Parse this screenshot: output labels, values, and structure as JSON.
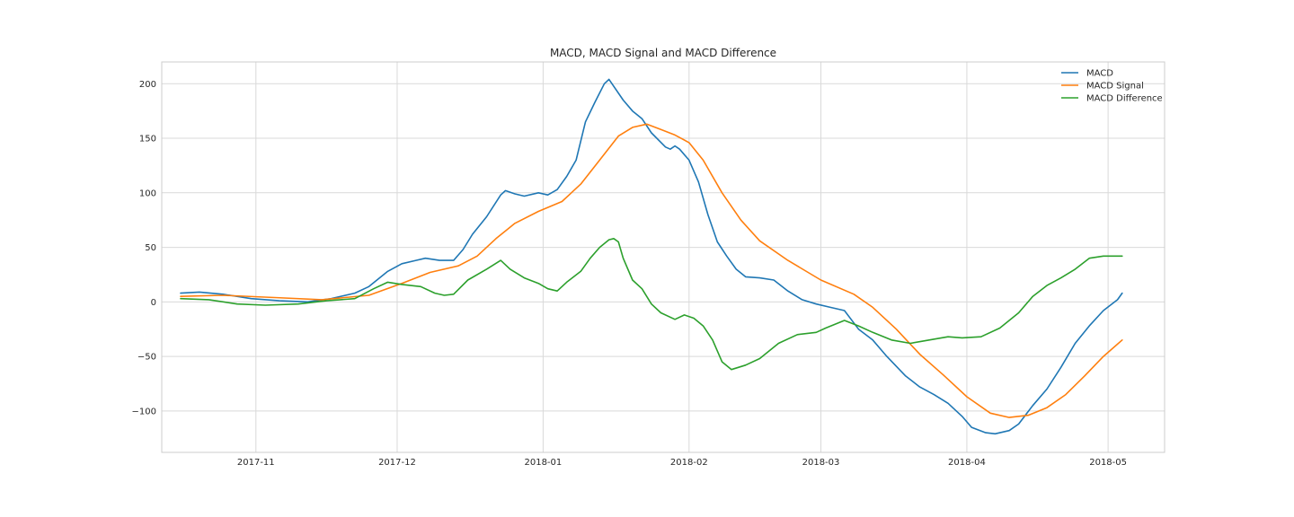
{
  "chart_data": {
    "type": "line",
    "title": "MACD, MACD Signal and MACD Difference",
    "xlabel": "",
    "ylabel": "",
    "grid": true,
    "legend_position": "top-right",
    "xlim": [
      "2017-10-12",
      "2018-05-13"
    ],
    "ylim": [
      -138,
      220
    ],
    "x_ticks": [
      "2017-11-01",
      "2017-12-01",
      "2018-01-01",
      "2018-02-01",
      "2018-03-01",
      "2018-04-01",
      "2018-05-01"
    ],
    "x_tick_labels": [
      "2017-11",
      "2017-12",
      "2018-01",
      "2018-02",
      "2018-03",
      "2018-04",
      "2018-05"
    ],
    "y_ticks": [
      -100,
      -50,
      0,
      50,
      100,
      150,
      200
    ],
    "y_tick_labels": [
      "−100",
      "−50",
      "0",
      "50",
      "100",
      "150",
      "200"
    ],
    "series": [
      {
        "name": "MACD",
        "color": "#1f77b4",
        "points": [
          [
            "2017-10-16",
            8
          ],
          [
            "2017-10-20",
            9
          ],
          [
            "2017-10-25",
            7
          ],
          [
            "2017-10-31",
            3
          ],
          [
            "2017-11-06",
            1
          ],
          [
            "2017-11-12",
            0
          ],
          [
            "2017-11-17",
            3
          ],
          [
            "2017-11-22",
            8
          ],
          [
            "2017-11-25",
            14
          ],
          [
            "2017-11-29",
            28
          ],
          [
            "2017-12-02",
            35
          ],
          [
            "2017-12-05",
            38
          ],
          [
            "2017-12-07",
            40
          ],
          [
            "2017-12-10",
            38
          ],
          [
            "2017-12-13",
            38
          ],
          [
            "2017-12-15",
            48
          ],
          [
            "2017-12-17",
            62
          ],
          [
            "2017-12-20",
            78
          ],
          [
            "2017-12-23",
            98
          ],
          [
            "2017-12-24",
            102
          ],
          [
            "2017-12-26",
            99
          ],
          [
            "2017-12-28",
            97
          ],
          [
            "2017-12-31",
            100
          ],
          [
            "2018-01-02",
            98
          ],
          [
            "2018-01-04",
            103
          ],
          [
            "2018-01-06",
            115
          ],
          [
            "2018-01-08",
            130
          ],
          [
            "2018-01-10",
            165
          ],
          [
            "2018-01-12",
            183
          ],
          [
            "2018-01-14",
            200
          ],
          [
            "2018-01-15",
            204
          ],
          [
            "2018-01-18",
            185
          ],
          [
            "2018-01-20",
            175
          ],
          [
            "2018-01-22",
            168
          ],
          [
            "2018-01-24",
            155
          ],
          [
            "2018-01-27",
            142
          ],
          [
            "2018-01-28",
            140
          ],
          [
            "2018-01-29",
            143
          ],
          [
            "2018-01-30",
            140
          ],
          [
            "2018-02-01",
            130
          ],
          [
            "2018-02-03",
            110
          ],
          [
            "2018-02-05",
            80
          ],
          [
            "2018-02-07",
            55
          ],
          [
            "2018-02-09",
            42
          ],
          [
            "2018-02-11",
            30
          ],
          [
            "2018-02-13",
            23
          ],
          [
            "2018-02-16",
            22
          ],
          [
            "2018-02-19",
            20
          ],
          [
            "2018-02-22",
            10
          ],
          [
            "2018-02-25",
            2
          ],
          [
            "2018-02-28",
            -2
          ],
          [
            "2018-03-03",
            -5
          ],
          [
            "2018-03-06",
            -8
          ],
          [
            "2018-03-09",
            -25
          ],
          [
            "2018-03-12",
            -35
          ],
          [
            "2018-03-15",
            -50
          ],
          [
            "2018-03-19",
            -68
          ],
          [
            "2018-03-22",
            -78
          ],
          [
            "2018-03-25",
            -85
          ],
          [
            "2018-03-28",
            -93
          ],
          [
            "2018-03-31",
            -105
          ],
          [
            "2018-04-02",
            -115
          ],
          [
            "2018-04-05",
            -120
          ],
          [
            "2018-04-07",
            -121
          ],
          [
            "2018-04-10",
            -118
          ],
          [
            "2018-04-12",
            -112
          ],
          [
            "2018-04-15",
            -95
          ],
          [
            "2018-04-18",
            -80
          ],
          [
            "2018-04-21",
            -60
          ],
          [
            "2018-04-24",
            -38
          ],
          [
            "2018-04-27",
            -22
          ],
          [
            "2018-04-30",
            -8
          ],
          [
            "2018-05-03",
            2
          ],
          [
            "2018-05-04",
            8
          ]
        ]
      },
      {
        "name": "MACD Signal",
        "color": "#ff7f0e",
        "points": [
          [
            "2017-10-16",
            5
          ],
          [
            "2017-10-25",
            6
          ],
          [
            "2017-11-05",
            4
          ],
          [
            "2017-11-15",
            2
          ],
          [
            "2017-11-25",
            6
          ],
          [
            "2017-12-02",
            17
          ],
          [
            "2017-12-08",
            27
          ],
          [
            "2017-12-14",
            33
          ],
          [
            "2017-12-18",
            42
          ],
          [
            "2017-12-22",
            58
          ],
          [
            "2017-12-26",
            72
          ],
          [
            "2017-12-31",
            83
          ],
          [
            "2018-01-05",
            92
          ],
          [
            "2018-01-09",
            108
          ],
          [
            "2018-01-13",
            130
          ],
          [
            "2018-01-17",
            152
          ],
          [
            "2018-01-20",
            160
          ],
          [
            "2018-01-23",
            163
          ],
          [
            "2018-01-26",
            158
          ],
          [
            "2018-01-29",
            153
          ],
          [
            "2018-02-01",
            146
          ],
          [
            "2018-02-04",
            130
          ],
          [
            "2018-02-08",
            100
          ],
          [
            "2018-02-12",
            75
          ],
          [
            "2018-02-16",
            56
          ],
          [
            "2018-02-22",
            38
          ],
          [
            "2018-03-01",
            20
          ],
          [
            "2018-03-08",
            7
          ],
          [
            "2018-03-12",
            -5
          ],
          [
            "2018-03-17",
            -25
          ],
          [
            "2018-03-22",
            -48
          ],
          [
            "2018-03-27",
            -67
          ],
          [
            "2018-04-01",
            -87
          ],
          [
            "2018-04-06",
            -102
          ],
          [
            "2018-04-10",
            -106
          ],
          [
            "2018-04-14",
            -104
          ],
          [
            "2018-04-18",
            -97
          ],
          [
            "2018-04-22",
            -85
          ],
          [
            "2018-04-26",
            -68
          ],
          [
            "2018-04-30",
            -50
          ],
          [
            "2018-05-04",
            -35
          ]
        ]
      },
      {
        "name": "MACD Difference",
        "color": "#2ca02c",
        "points": [
          [
            "2017-10-16",
            3
          ],
          [
            "2017-10-22",
            2
          ],
          [
            "2017-10-28",
            -2
          ],
          [
            "2017-11-03",
            -3
          ],
          [
            "2017-11-10",
            -2
          ],
          [
            "2017-11-16",
            1
          ],
          [
            "2017-11-22",
            3
          ],
          [
            "2017-11-26",
            12
          ],
          [
            "2017-11-29",
            18
          ],
          [
            "2017-12-02",
            16
          ],
          [
            "2017-12-06",
            14
          ],
          [
            "2017-12-09",
            8
          ],
          [
            "2017-12-11",
            6
          ],
          [
            "2017-12-13",
            7
          ],
          [
            "2017-12-16",
            20
          ],
          [
            "2017-12-20",
            30
          ],
          [
            "2017-12-23",
            38
          ],
          [
            "2017-12-25",
            30
          ],
          [
            "2017-12-28",
            22
          ],
          [
            "2017-12-31",
            17
          ],
          [
            "2018-01-02",
            12
          ],
          [
            "2018-01-04",
            10
          ],
          [
            "2018-01-06",
            18
          ],
          [
            "2018-01-09",
            28
          ],
          [
            "2018-01-11",
            40
          ],
          [
            "2018-01-13",
            50
          ],
          [
            "2018-01-15",
            57
          ],
          [
            "2018-01-16",
            58
          ],
          [
            "2018-01-17",
            55
          ],
          [
            "2018-01-18",
            40
          ],
          [
            "2018-01-20",
            20
          ],
          [
            "2018-01-22",
            12
          ],
          [
            "2018-01-24",
            -2
          ],
          [
            "2018-01-26",
            -10
          ],
          [
            "2018-01-29",
            -16
          ],
          [
            "2018-01-31",
            -12
          ],
          [
            "2018-02-02",
            -15
          ],
          [
            "2018-02-04",
            -22
          ],
          [
            "2018-02-06",
            -35
          ],
          [
            "2018-02-08",
            -55
          ],
          [
            "2018-02-10",
            -62
          ],
          [
            "2018-02-13",
            -58
          ],
          [
            "2018-02-16",
            -52
          ],
          [
            "2018-02-20",
            -38
          ],
          [
            "2018-02-24",
            -30
          ],
          [
            "2018-02-28",
            -28
          ],
          [
            "2018-03-02",
            -24
          ],
          [
            "2018-03-06",
            -17
          ],
          [
            "2018-03-09",
            -22
          ],
          [
            "2018-03-12",
            -28
          ],
          [
            "2018-03-16",
            -35
          ],
          [
            "2018-03-20",
            -38
          ],
          [
            "2018-03-24",
            -35
          ],
          [
            "2018-03-28",
            -32
          ],
          [
            "2018-03-31",
            -33
          ],
          [
            "2018-04-04",
            -32
          ],
          [
            "2018-04-08",
            -24
          ],
          [
            "2018-04-12",
            -10
          ],
          [
            "2018-04-15",
            5
          ],
          [
            "2018-04-18",
            15
          ],
          [
            "2018-04-21",
            22
          ],
          [
            "2018-04-24",
            30
          ],
          [
            "2018-04-27",
            40
          ],
          [
            "2018-04-30",
            42
          ],
          [
            "2018-05-02",
            42
          ],
          [
            "2018-05-04",
            42
          ]
        ]
      }
    ]
  }
}
